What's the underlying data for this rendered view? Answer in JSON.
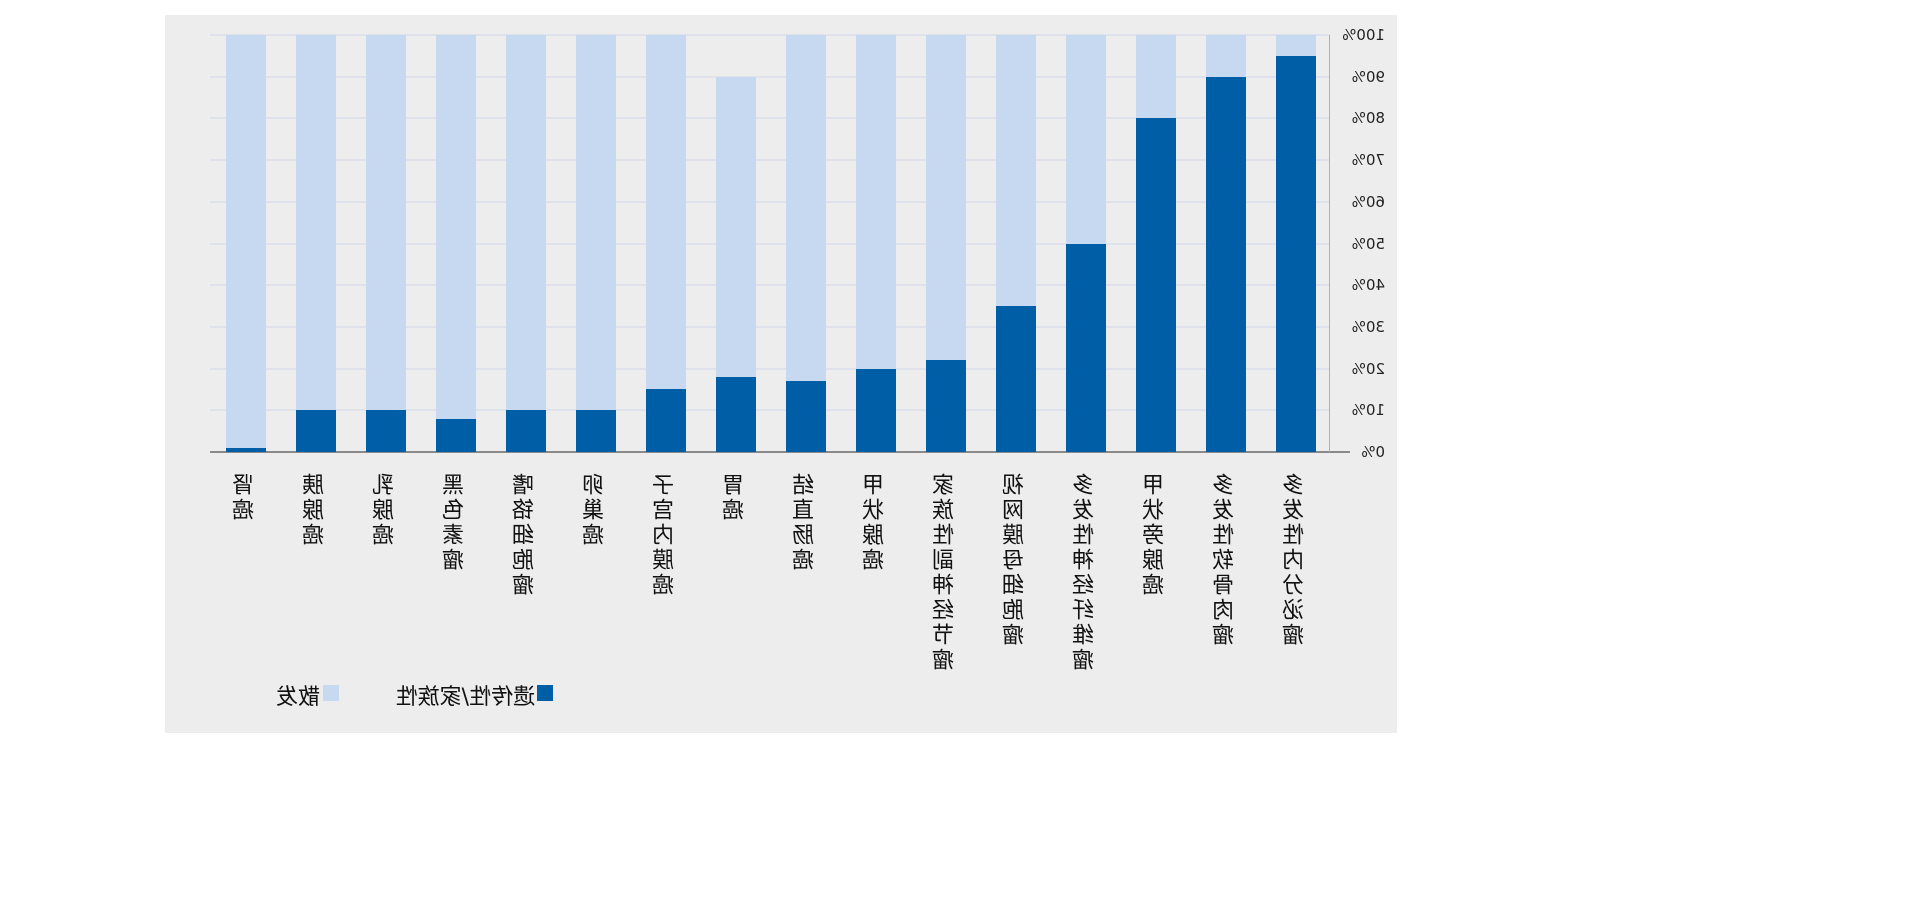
{
  "chart_data": {
    "type": "bar",
    "stacked": true,
    "orientation": "mirrored-horizontal",
    "title": "",
    "xlabel": "",
    "ylabel": "",
    "ylim": [
      0,
      100
    ],
    "yticks": [
      "0%",
      "10%",
      "20%",
      "30%",
      "40%",
      "50%",
      "60%",
      "70%",
      "80%",
      "90%",
      "100%"
    ],
    "grid": true,
    "legend_position": "bottom",
    "categories": [
      "肾癌",
      "胰腺癌",
      "乳腺癌",
      "黑色素瘤",
      "嗜铬细胞瘤",
      "卵巢癌",
      "子宫内膜癌",
      "胃癌",
      "结直肠癌",
      "甲状腺癌",
      "家族性副神经节瘤",
      "视网膜母细胞瘤",
      "多发性神经纤维瘤",
      "甲状旁腺癌",
      "多发性软骨肉瘤",
      "多发性内分泌瘤"
    ],
    "series": [
      {
        "name": "遗传性/家族性",
        "color": "#005ea6",
        "values": [
          1,
          10,
          10,
          8,
          10,
          10,
          15,
          18,
          17,
          20,
          22,
          35,
          50,
          80,
          90,
          95
        ]
      },
      {
        "name": "散发",
        "color": "#c6d9f0",
        "values": [
          99,
          90,
          90,
          92,
          90,
          90,
          85,
          72,
          83,
          80,
          78,
          65,
          50,
          20,
          10,
          5
        ]
      }
    ]
  }
}
